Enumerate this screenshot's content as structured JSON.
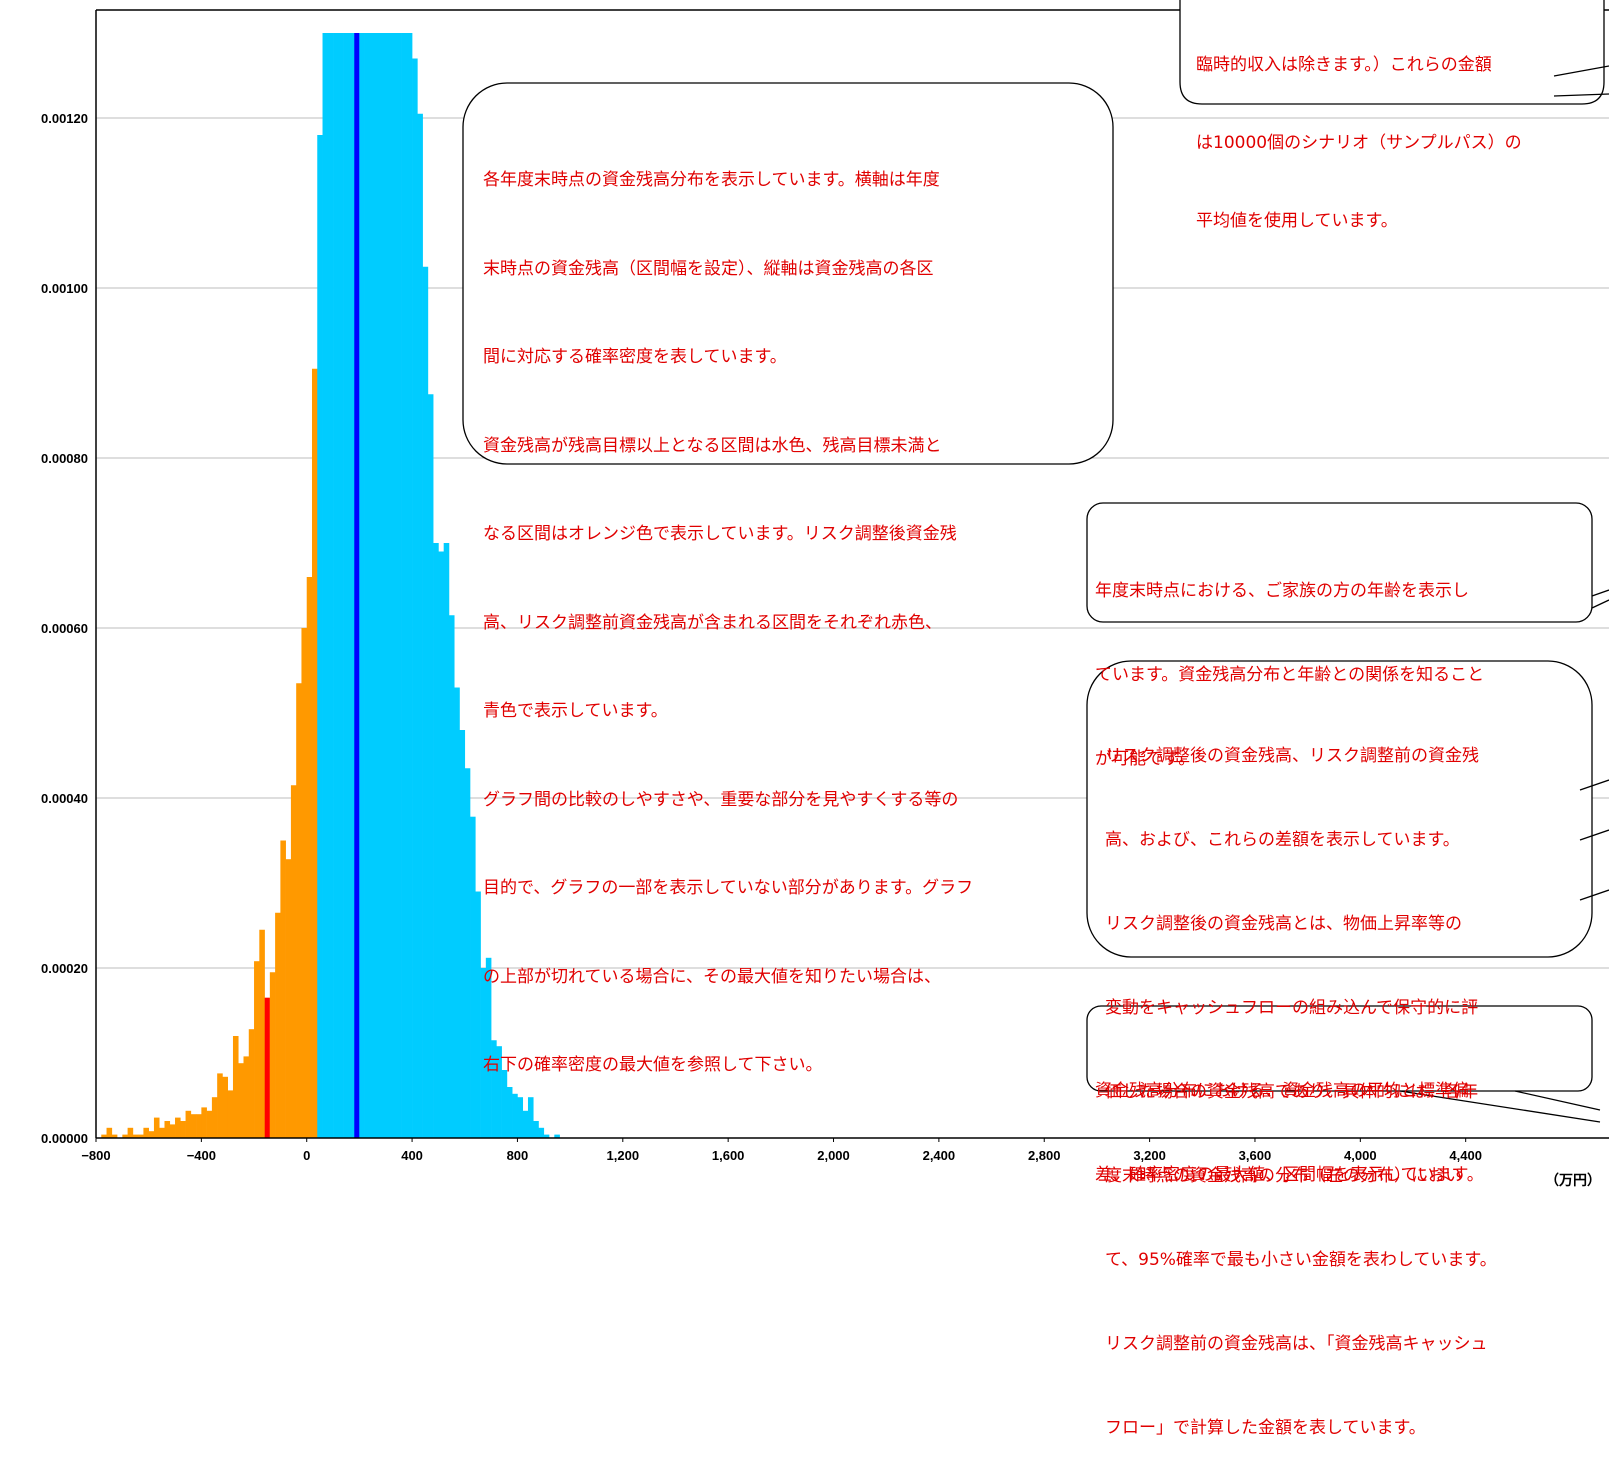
{
  "chart_data": {
    "type": "bar",
    "x_unit": "（万円）",
    "x_ticks": [
      "-800",
      "-400",
      "0",
      "400",
      "800",
      "1,200",
      "1,600",
      "2,000",
      "2,400",
      "2,800",
      "3,200",
      "3,600",
      "4,000",
      "4,400"
    ],
    "y_ticks": [
      "0.00000",
      "0.00020",
      "0.00040",
      "0.00060",
      "0.00080",
      "0.00100",
      "0.00120"
    ],
    "xlim": [
      -800,
      4800
    ],
    "ylim": [
      0,
      0.0013
    ],
    "bin_width": 20,
    "grid": true,
    "colors": {
      "below_target": "#FF9900",
      "above_target": "#00CCFF",
      "risk_adjusted": "#FF0000",
      "pre_adjustment": "#0000FF"
    },
    "risk_adjusted_value": -150,
    "pre_adjustment_value": 190,
    "target_threshold": 40,
    "bins": [
      {
        "x": -780,
        "v": 4e-06
      },
      {
        "x": -760,
        "v": 1.2e-05
      },
      {
        "x": -740,
        "v": 4e-06
      },
      {
        "x": -720,
        "v": 0.0
      },
      {
        "x": -700,
        "v": 4e-06
      },
      {
        "x": -680,
        "v": 1.2e-05
      },
      {
        "x": -660,
        "v": 4e-06
      },
      {
        "x": -640,
        "v": 4e-06
      },
      {
        "x": -620,
        "v": 1.2e-05
      },
      {
        "x": -600,
        "v": 8e-06
      },
      {
        "x": -580,
        "v": 2.4e-05
      },
      {
        "x": -560,
        "v": 1.2e-05
      },
      {
        "x": -540,
        "v": 2e-05
      },
      {
        "x": -520,
        "v": 1.6e-05
      },
      {
        "x": -500,
        "v": 2.4e-05
      },
      {
        "x": -480,
        "v": 2e-05
      },
      {
        "x": -460,
        "v": 3.2e-05
      },
      {
        "x": -440,
        "v": 2.8e-05
      },
      {
        "x": -420,
        "v": 2.8e-05
      },
      {
        "x": -400,
        "v": 3.6e-05
      },
      {
        "x": -380,
        "v": 3.2e-05
      },
      {
        "x": -360,
        "v": 4.8e-05
      },
      {
        "x": -340,
        "v": 7.6e-05
      },
      {
        "x": -320,
        "v": 7.2e-05
      },
      {
        "x": -300,
        "v": 5.6e-05
      },
      {
        "x": -280,
        "v": 0.00012
      },
      {
        "x": -260,
        "v": 8.8e-05
      },
      {
        "x": -240,
        "v": 9.6e-05
      },
      {
        "x": -220,
        "v": 0.000128
      },
      {
        "x": -200,
        "v": 0.000208
      },
      {
        "x": -180,
        "v": 0.000245
      },
      {
        "x": -160,
        "v": 0.000165
      },
      {
        "x": -140,
        "v": 0.000195
      },
      {
        "x": -120,
        "v": 0.000265
      },
      {
        "x": -100,
        "v": 0.00035
      },
      {
        "x": -80,
        "v": 0.000328
      },
      {
        "x": -60,
        "v": 0.000415
      },
      {
        "x": -40,
        "v": 0.000535
      },
      {
        "x": -20,
        "v": 0.0006
      },
      {
        "x": 0,
        "v": 0.00066
      },
      {
        "x": 20,
        "v": 0.000905
      },
      {
        "x": 40,
        "v": 0.00118
      },
      {
        "x": 60,
        "v": 0.0013
      },
      {
        "x": 80,
        "v": 0.0013
      },
      {
        "x": 100,
        "v": 0.0013
      },
      {
        "x": 120,
        "v": 0.0013
      },
      {
        "x": 140,
        "v": 0.0013
      },
      {
        "x": 160,
        "v": 0.0013
      },
      {
        "x": 180,
        "v": 0.0013
      },
      {
        "x": 200,
        "v": 0.0013
      },
      {
        "x": 220,
        "v": 0.0013
      },
      {
        "x": 240,
        "v": 0.0013
      },
      {
        "x": 260,
        "v": 0.0013
      },
      {
        "x": 280,
        "v": 0.0013
      },
      {
        "x": 300,
        "v": 0.0013
      },
      {
        "x": 320,
        "v": 0.0013
      },
      {
        "x": 340,
        "v": 0.0013
      },
      {
        "x": 360,
        "v": 0.0013
      },
      {
        "x": 380,
        "v": 0.0013
      },
      {
        "x": 400,
        "v": 0.00127
      },
      {
        "x": 420,
        "v": 0.001205
      },
      {
        "x": 440,
        "v": 0.001025
      },
      {
        "x": 460,
        "v": 0.000875
      },
      {
        "x": 480,
        "v": 0.0007
      },
      {
        "x": 500,
        "v": 0.00069
      },
      {
        "x": 520,
        "v": 0.0007
      },
      {
        "x": 540,
        "v": 0.000615
      },
      {
        "x": 560,
        "v": 0.00053
      },
      {
        "x": 580,
        "v": 0.00048
      },
      {
        "x": 600,
        "v": 0.000435
      },
      {
        "x": 620,
        "v": 0.000378
      },
      {
        "x": 640,
        "v": 0.00029
      },
      {
        "x": 660,
        "v": 0.0002
      },
      {
        "x": 680,
        "v": 0.000212
      },
      {
        "x": 700,
        "v": 0.000115
      },
      {
        "x": 720,
        "v": 0.000108
      },
      {
        "x": 740,
        "v": 8e-05
      },
      {
        "x": 760,
        "v": 6e-05
      },
      {
        "x": 780,
        "v": 5.2e-05
      },
      {
        "x": 800,
        "v": 4.8e-05
      },
      {
        "x": 820,
        "v": 3.2e-05
      },
      {
        "x": 840,
        "v": 4.8e-05
      },
      {
        "x": 860,
        "v": 2e-05
      },
      {
        "x": 880,
        "v": 1.2e-05
      },
      {
        "x": 900,
        "v": 4e-06
      },
      {
        "x": 920,
        "v": 0.0
      },
      {
        "x": 940,
        "v": 4e-06
      }
    ]
  },
  "callouts": {
    "top_right": [
      "臨時的収入は除きます。）これらの金額",
      "は10000個のシナリオ（サンプルパス）の",
      "平均値を使用しています。"
    ],
    "distribution": [
      "各年度末時点の資金残高分布を表示しています。横軸は年度",
      "末時点の資金残高（区間幅を設定）、縦軸は資金残高の各区",
      "間に対応する確率密度を表しています。",
      "資金残高が残高目標以上となる区間は水色、残高目標未満と",
      "なる区間はオレンジ色で表示しています。リスク調整後資金残",
      "高、リスク調整前資金残高が含まれる区間をそれぞれ赤色、",
      "青色で表示しています。",
      "グラフ間の比較のしやすさや、重要な部分を見やすくする等の",
      "目的で、グラフの一部を表示していない部分があります。グラフ",
      "の上部が切れている場合に、その最大値を知りたい場合は、",
      "右下の確率密度の最大値を参照して下さい。"
    ],
    "age": [
      "年度末時点における、ご家族の方の年齢を表示し",
      "ています。資金残高分布と年齢との関係を知ること",
      "が可能です。"
    ],
    "risk": [
      "リスク調整後の資金残高、リスク調整前の資金残",
      "高、および、これらの差額を表示しています。",
      "リスク調整後の資金残高とは、物価上昇率等の",
      "変動をキャッシュフローの組み込んで保守的に評",
      "価した場合の資金残高であり、具体的には、各年",
      "度末時点の資金残高の分布（左の分布）におい",
      "て、95%確率で最も小さい金額を表わしています。",
      "リスク調整前の資金残高は、「資金残高キャッシュ",
      "フロー」で計算した金額を表しています。"
    ],
    "stats": [
      "資金残高分布における、資金残高の平均と標準偏",
      "差、確率密度の最大値、区間幅を表示しています。"
    ]
  }
}
